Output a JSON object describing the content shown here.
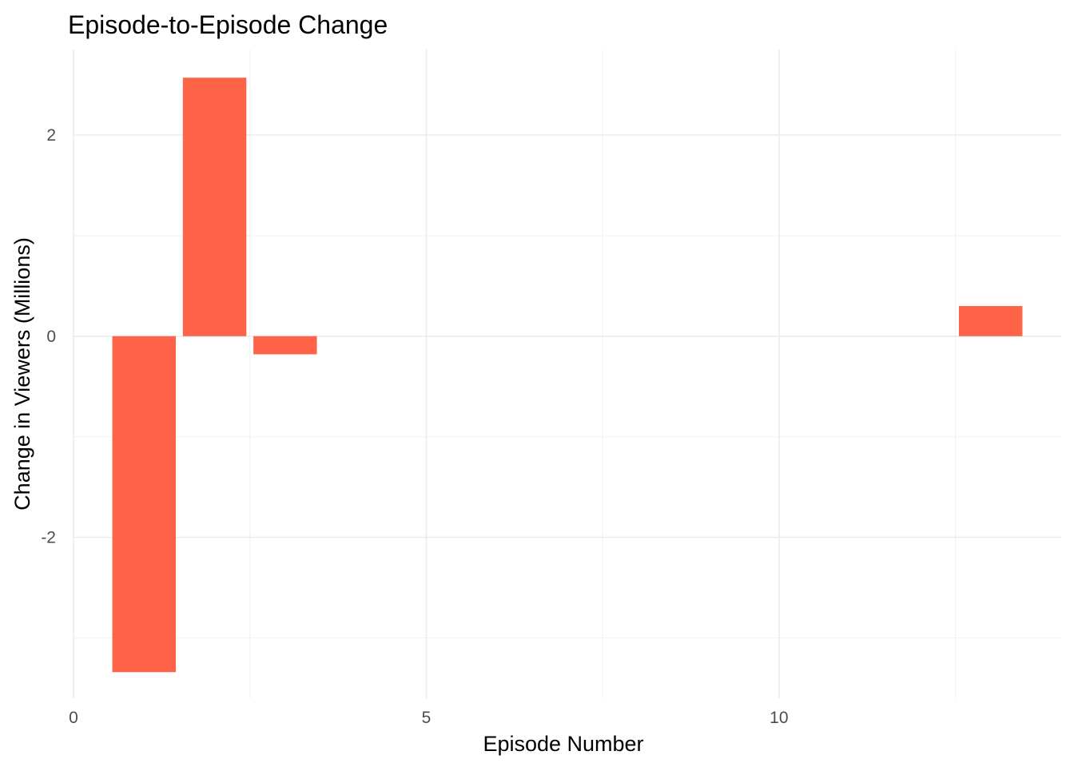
{
  "chart_data": {
    "type": "bar",
    "title": "Episode-to-Episode Change",
    "xlabel": "Episode Number",
    "ylabel": "Change in Viewers (Millions)",
    "x": [
      1,
      2,
      3,
      13
    ],
    "values": [
      -3.34,
      2.57,
      -0.18,
      0.3
    ],
    "xlim": [
      0,
      14
    ],
    "ylim": [
      -3.6,
      2.85
    ],
    "x_ticks": [
      0,
      5,
      10
    ],
    "x_tick_labels": [
      "0",
      "5",
      "10"
    ],
    "y_ticks": [
      -2,
      0,
      2
    ],
    "y_tick_labels": [
      "-2",
      "0",
      "2"
    ],
    "bar_color": "#ff6347",
    "grid": true,
    "legend": "none"
  }
}
